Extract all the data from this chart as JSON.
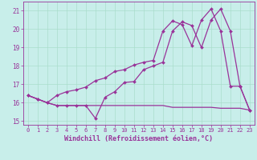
{
  "xlabel": "Windchill (Refroidissement éolien,°C)",
  "background_color": "#c8eeea",
  "grid_color": "#aaddcc",
  "line_color": "#993399",
  "xlim": [
    -0.5,
    23.5
  ],
  "ylim": [
    14.8,
    21.5
  ],
  "yticks": [
    15,
    16,
    17,
    18,
    19,
    20,
    21
  ],
  "xticks": [
    0,
    1,
    2,
    3,
    4,
    5,
    6,
    7,
    8,
    9,
    10,
    11,
    12,
    13,
    14,
    15,
    16,
    17,
    18,
    19,
    20,
    21,
    22,
    23
  ],
  "series1_x": [
    0,
    1,
    2,
    3,
    4,
    5,
    6,
    7,
    8,
    9,
    10,
    11,
    12,
    13,
    14,
    15,
    16,
    17,
    18,
    19,
    20,
    21,
    22,
    23
  ],
  "series1_y": [
    16.4,
    16.2,
    16.0,
    15.85,
    15.85,
    15.85,
    15.85,
    15.85,
    15.85,
    15.85,
    15.85,
    15.85,
    15.85,
    15.85,
    15.85,
    15.75,
    15.75,
    15.75,
    15.75,
    15.75,
    15.7,
    15.7,
    15.7,
    15.6
  ],
  "series2_x": [
    0,
    1,
    2,
    3,
    4,
    5,
    6,
    7,
    8,
    9,
    10,
    11,
    12,
    13,
    14,
    15,
    16,
    17,
    18,
    19,
    20,
    21,
    22,
    23
  ],
  "series2_y": [
    16.4,
    16.2,
    16.0,
    15.85,
    15.85,
    15.85,
    15.85,
    15.15,
    16.3,
    16.6,
    17.1,
    17.15,
    17.8,
    18.0,
    18.2,
    19.9,
    20.4,
    20.2,
    19.0,
    20.5,
    21.1,
    19.9,
    16.9,
    15.6
  ],
  "series3_x": [
    0,
    1,
    2,
    3,
    4,
    5,
    6,
    7,
    8,
    9,
    10,
    11,
    12,
    13,
    14,
    15,
    16,
    17,
    18,
    19,
    20,
    21,
    22,
    23
  ],
  "series3_y": [
    16.4,
    16.2,
    16.0,
    16.4,
    16.6,
    16.7,
    16.85,
    17.2,
    17.35,
    17.7,
    17.8,
    18.05,
    18.2,
    18.3,
    19.9,
    20.45,
    20.25,
    19.1,
    20.5,
    21.1,
    19.9,
    16.9,
    16.9,
    15.6
  ]
}
